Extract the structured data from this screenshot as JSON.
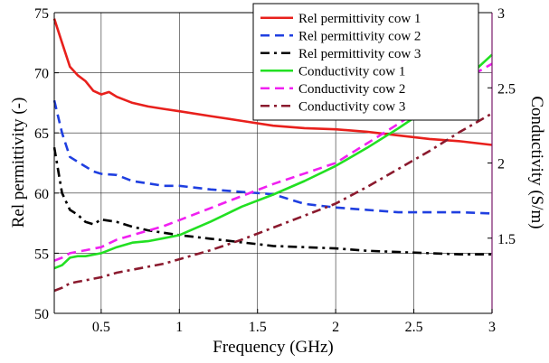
{
  "chart_data": {
    "type": "line",
    "xlabel": "Frequency (GHz)",
    "ylabel_left": "Rel permittivity (-)",
    "ylabel_right": "Conductivity (S/m)",
    "xlim": [
      0.2,
      3
    ],
    "ylim_left": [
      50,
      75
    ],
    "ylim_right": [
      1.0,
      3.0
    ],
    "x_ticks": [
      0.5,
      1,
      1.5,
      2,
      2.5,
      3
    ],
    "x_tick_labels": [
      "0.5",
      "1",
      "1.5",
      "2",
      "2.5",
      "3"
    ],
    "y_left_ticks": [
      50,
      55,
      60,
      65,
      70,
      75
    ],
    "y_left_tick_labels": [
      "50",
      "55",
      "60",
      "65",
      "70",
      "75"
    ],
    "y_right_ticks": [
      1.5,
      2,
      2.5,
      3
    ],
    "y_right_tick_labels": [
      "1.5",
      "2",
      "2.5",
      "3"
    ],
    "grid": true,
    "legend_position": "top-right",
    "series": [
      {
        "name": "Rel permittivity cow 1",
        "axis": "left",
        "color": "#e8201c",
        "dash": "solid",
        "x": [
          0.2,
          0.25,
          0.3,
          0.35,
          0.4,
          0.45,
          0.5,
          0.55,
          0.6,
          0.7,
          0.8,
          0.9,
          1.0,
          1.2,
          1.4,
          1.6,
          1.8,
          2.0,
          2.2,
          2.4,
          2.6,
          2.8,
          3.0
        ],
        "y": [
          74.5,
          72.5,
          70.5,
          69.8,
          69.3,
          68.5,
          68.2,
          68.4,
          68.0,
          67.5,
          67.2,
          67.0,
          66.8,
          66.4,
          66.0,
          65.6,
          65.4,
          65.3,
          65.1,
          64.8,
          64.5,
          64.3,
          64.0
        ]
      },
      {
        "name": "Rel permittivity cow 2",
        "axis": "left",
        "color": "#1f3fe0",
        "dash": "dash",
        "x": [
          0.2,
          0.25,
          0.3,
          0.35,
          0.4,
          0.45,
          0.5,
          0.6,
          0.7,
          0.8,
          0.9,
          1.0,
          1.2,
          1.4,
          1.6,
          1.8,
          2.0,
          2.2,
          2.4,
          2.6,
          2.8,
          3.0
        ],
        "y": [
          67.7,
          65.0,
          63.0,
          62.6,
          62.2,
          61.8,
          61.6,
          61.5,
          61.0,
          60.8,
          60.6,
          60.6,
          60.3,
          60.1,
          59.9,
          59.1,
          58.8,
          58.6,
          58.4,
          58.4,
          58.4,
          58.3
        ]
      },
      {
        "name": "Rel permittivity cow 3",
        "axis": "left",
        "color": "#000000",
        "dash": "dashdot",
        "x": [
          0.2,
          0.25,
          0.3,
          0.35,
          0.4,
          0.45,
          0.5,
          0.6,
          0.7,
          0.8,
          0.9,
          1.0,
          1.2,
          1.4,
          1.6,
          1.8,
          2.0,
          2.2,
          2.4,
          2.6,
          2.8,
          3.0
        ],
        "y": [
          63.8,
          60.0,
          58.6,
          58.2,
          57.6,
          57.4,
          57.8,
          57.6,
          57.2,
          56.9,
          56.7,
          56.5,
          56.2,
          55.9,
          55.6,
          55.5,
          55.4,
          55.2,
          55.1,
          55.0,
          54.9,
          54.9
        ]
      },
      {
        "name": "Conductivity cow 1",
        "axis": "right",
        "color": "#22e022",
        "dash": "solid",
        "x": [
          0.2,
          0.25,
          0.3,
          0.35,
          0.4,
          0.5,
          0.6,
          0.7,
          0.8,
          0.9,
          1.0,
          1.2,
          1.4,
          1.6,
          1.8,
          2.0,
          2.2,
          2.4,
          2.6,
          2.8,
          3.0
        ],
        "y": [
          1.3,
          1.32,
          1.37,
          1.38,
          1.38,
          1.4,
          1.44,
          1.47,
          1.48,
          1.5,
          1.52,
          1.61,
          1.71,
          1.79,
          1.88,
          1.98,
          2.1,
          2.23,
          2.37,
          2.53,
          2.72
        ]
      },
      {
        "name": "Conductivity cow 2",
        "axis": "right",
        "color": "#f020f0",
        "dash": "dash",
        "x": [
          0.2,
          0.25,
          0.3,
          0.35,
          0.4,
          0.5,
          0.6,
          0.7,
          0.8,
          0.9,
          1.0,
          1.2,
          1.4,
          1.6,
          1.8,
          2.0,
          2.2,
          2.4,
          2.6,
          2.8,
          3.0
        ],
        "y": [
          1.35,
          1.37,
          1.4,
          1.41,
          1.42,
          1.44,
          1.49,
          1.52,
          1.55,
          1.58,
          1.62,
          1.7,
          1.78,
          1.86,
          1.93,
          2.0,
          2.13,
          2.26,
          2.4,
          2.54,
          2.66
        ]
      },
      {
        "name": "Conductivity cow 3",
        "axis": "right",
        "color": "#8b1a2e",
        "dash": "dashdot",
        "x": [
          0.2,
          0.25,
          0.3,
          0.35,
          0.4,
          0.5,
          0.6,
          0.7,
          0.8,
          0.9,
          1.0,
          1.2,
          1.4,
          1.6,
          1.8,
          2.0,
          2.2,
          2.4,
          2.6,
          2.8,
          3.0
        ],
        "y": [
          1.15,
          1.17,
          1.2,
          1.21,
          1.22,
          1.24,
          1.27,
          1.29,
          1.31,
          1.33,
          1.36,
          1.42,
          1.49,
          1.57,
          1.65,
          1.73,
          1.84,
          1.96,
          2.08,
          2.21,
          2.33
        ]
      }
    ]
  }
}
